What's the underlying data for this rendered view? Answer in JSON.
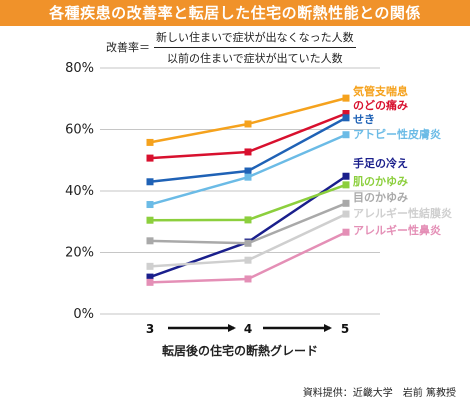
{
  "header": {
    "title": "各種疾患の改善率と転居した住宅の断熱性能との関係"
  },
  "formula": {
    "lhs": "改善率＝",
    "numerator": "新しい住まいで症状が出なくなった人数",
    "denominator": "以前の住まいで症状が出ていた人数"
  },
  "credit": "資料提供：近畿大学　岩前 篤教授",
  "chart_data": {
    "type": "line",
    "title": "",
    "xlabel": "転居後の住宅の断熱グレード",
    "ylabel": "",
    "x": [
      3,
      4,
      5
    ],
    "x_tick_labels": [
      "3",
      "4",
      "5"
    ],
    "ylim": [
      0,
      80
    ],
    "y_ticks": [
      0,
      20,
      40,
      60,
      80
    ],
    "y_tick_labels": [
      "0%",
      "20%",
      "40%",
      "60%",
      "80%"
    ],
    "grid": "horizontal",
    "legend": "right (labels beside line ends)",
    "series": [
      {
        "name": "気管支喘息",
        "color": "#f5a21d",
        "values": [
          55.8,
          61.8,
          70.2
        ]
      },
      {
        "name": "のどの痛み",
        "color": "#d8102e",
        "values": [
          50.7,
          52.7,
          65.2
        ]
      },
      {
        "name": "せき",
        "color": "#1f62b6",
        "values": [
          43.0,
          46.5,
          63.8
        ]
      },
      {
        "name": "アトピー性皮膚炎",
        "color": "#6bbbe6",
        "values": [
          35.6,
          44.5,
          58.3
        ]
      },
      {
        "name": "手足の冷え",
        "color": "#1a1f8c",
        "values": [
          12.0,
          23.4,
          44.8
        ]
      },
      {
        "name": "肌のかゆみ",
        "color": "#8ccf3d",
        "values": [
          30.5,
          30.6,
          42.0
        ]
      },
      {
        "name": "目のかゆみ",
        "color": "#a9a9a9",
        "values": [
          23.8,
          23.0,
          36.0
        ]
      },
      {
        "name": "アレルギー性結膜炎",
        "color": "#cfcfcf",
        "values": [
          15.5,
          17.5,
          32.5
        ]
      },
      {
        "name": "アレルギー性鼻炎",
        "color": "#e48fb6",
        "values": [
          10.3,
          11.4,
          26.6
        ]
      }
    ]
  }
}
